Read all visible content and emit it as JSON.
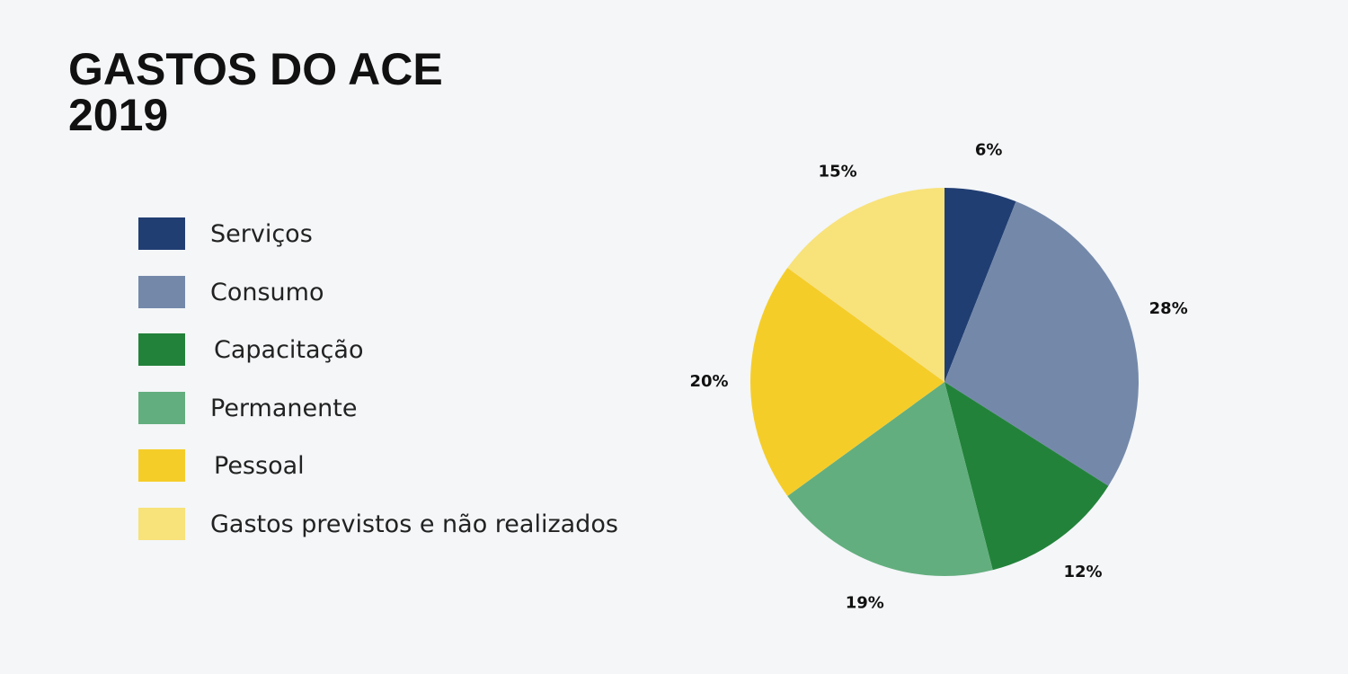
{
  "title": {
    "line1": "GASTOS DO ACE",
    "line2": "2019"
  },
  "chart_data": {
    "type": "pie",
    "title": "GASTOS DO ACE 2019",
    "legend_position": "left",
    "slices": [
      {
        "label": "Serviços",
        "value": 6,
        "value_label": "6%",
        "color": "#213e73"
      },
      {
        "label": "Consumo",
        "value": 28,
        "value_label": "28%",
        "color": "#7489aa"
      },
      {
        "label": "Capacitação",
        "value": 12,
        "value_label": "12%",
        "color": "#22823a"
      },
      {
        "label": "Permanente",
        "value": 19,
        "value_label": "19%",
        "color": "#63ae7e"
      },
      {
        "label": "Pessoal",
        "value": 20,
        "value_label": "20%",
        "color": "#f5cd29"
      },
      {
        "label": "Gastos previstos e não realizados",
        "value": 15,
        "value_label": "15%",
        "color": "#f8e27a"
      }
    ]
  }
}
